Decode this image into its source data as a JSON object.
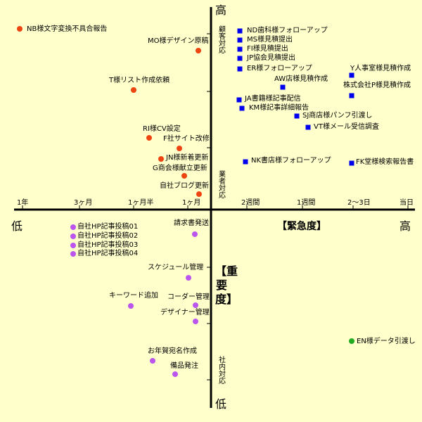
{
  "axis_labels": {
    "top": "高",
    "bottom": "低",
    "left": "低",
    "right": "高",
    "horizontal_title": "【緊急度】",
    "vertical_title": "【重要度】",
    "v_upper": "顧客対応",
    "v_middle": "業者対応",
    "v_lower": "社内対応"
  },
  "x_ticks": [
    "1年",
    "3ヶ月",
    "1ヶ月半",
    "1ヶ月",
    "2週間",
    "1週間",
    "2～3日",
    "当日"
  ],
  "colors": {
    "red": "#ee4411",
    "blue": "#0000ee",
    "purple": "#bb55ee",
    "green": "#22aa22",
    "axis": "#000000",
    "background": "#ffffcc"
  },
  "items": [
    {
      "label": "NB様文字変換不具合報告",
      "color": "red"
    },
    {
      "label": "MO様デザイン原稿",
      "color": "red"
    },
    {
      "label": "T様リスト作成依頼",
      "color": "red"
    },
    {
      "label": "RI様CV設定",
      "color": "red"
    },
    {
      "label": "F社サイト改修",
      "color": "red"
    },
    {
      "label": "JN様新着更新",
      "color": "red"
    },
    {
      "label": "G商会様献立更新",
      "color": "red"
    },
    {
      "label": "自社ブログ更新",
      "color": "red"
    },
    {
      "label": "ND歯科様フォローアップ",
      "color": "blue"
    },
    {
      "label": "MS様見積提出",
      "color": "blue"
    },
    {
      "label": "FI様見積提出",
      "color": "blue"
    },
    {
      "label": "JP協会見積提出",
      "color": "blue"
    },
    {
      "label": "ER様フォローアップ",
      "color": "blue"
    },
    {
      "label": "Y人事室様見積作成",
      "color": "blue"
    },
    {
      "label": "AW店様見積作成",
      "color": "blue"
    },
    {
      "label": "株式会社P様見積作成",
      "color": "blue"
    },
    {
      "label": "JA書籍様記事配信",
      "color": "blue"
    },
    {
      "label": "KM様記事詳細報告",
      "color": "blue"
    },
    {
      "label": "SJ商店様パンフ引渡し",
      "color": "blue"
    },
    {
      "label": "VT様メール受信調査",
      "color": "blue"
    },
    {
      "label": "NK書店様フォローアップ",
      "color": "blue"
    },
    {
      "label": "FK堂様検索報告書",
      "color": "blue"
    },
    {
      "label": "自社HP記事投稿01",
      "color": "purple"
    },
    {
      "label": "自社HP記事投稿02",
      "color": "purple"
    },
    {
      "label": "自社HP記事投稿03",
      "color": "purple"
    },
    {
      "label": "自社HP記事投稿04",
      "color": "purple"
    },
    {
      "label": "請求書発送",
      "color": "purple"
    },
    {
      "label": "スケジュール管理",
      "color": "purple"
    },
    {
      "label": "キーワード追加",
      "color": "purple"
    },
    {
      "label": "コーダー管理",
      "color": "purple"
    },
    {
      "label": "デザイナー管理",
      "color": "purple"
    },
    {
      "label": "お年賀宛名作成",
      "color": "purple"
    },
    {
      "label": "備品発注",
      "color": "purple"
    },
    {
      "label": "EN様データ引渡し",
      "color": "green"
    }
  ]
}
